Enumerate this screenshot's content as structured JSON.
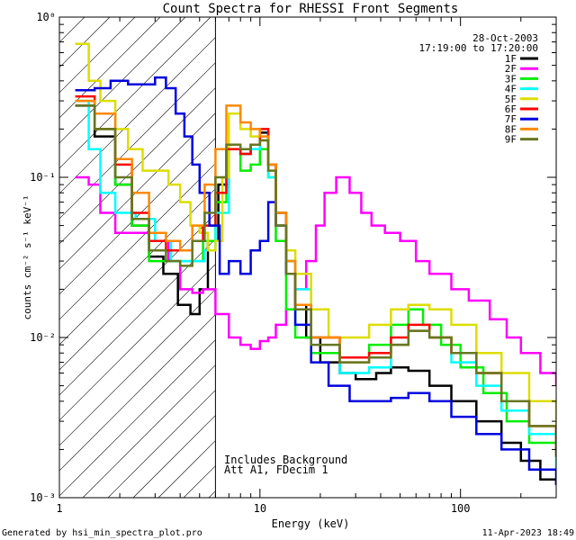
{
  "chart_data": {
    "type": "line",
    "title": "Count Spectra for RHESSI Front Segments",
    "xlabel": "Energy (keV)",
    "ylabel": "counts cm⁻² s⁻¹ keV⁻¹",
    "xscale": "log",
    "yscale": "log",
    "xlim": [
      1,
      300
    ],
    "ylim": [
      0.001,
      1
    ],
    "x_ticks": [
      {
        "value": 1,
        "label": "1"
      },
      {
        "value": 10,
        "label": "10"
      },
      {
        "value": 100,
        "label": "100"
      }
    ],
    "y_ticks": [
      {
        "value": 0.001,
        "label": "10⁻³"
      },
      {
        "value": 0.01,
        "label": "10⁻²"
      },
      {
        "value": 0.1,
        "label": "10⁻¹"
      },
      {
        "value": 1,
        "label": "10⁰"
      }
    ],
    "date": "28-Oct-2003",
    "time_range": "17:19:00 to 17:20:00",
    "shaded_region_max_kev": 6,
    "annotations": [
      "Includes Background",
      "Att A1, FDecim 1"
    ],
    "footer_left": "Generated by hsi_min_spectra_plot.pro",
    "footer_right": "11-Apr-2023 18:49",
    "series": [
      {
        "name": "1F",
        "color": "#000000",
        "points": [
          [
            1.2,
            0.28
          ],
          [
            1.5,
            0.18
          ],
          [
            1.9,
            0.09
          ],
          [
            2.3,
            0.05
          ],
          [
            2.8,
            0.032
          ],
          [
            3.3,
            0.025
          ],
          [
            3.9,
            0.016
          ],
          [
            4.5,
            0.014
          ],
          [
            5.0,
            0.02
          ],
          [
            5.5,
            0.04
          ],
          [
            6.2,
            0.09
          ],
          [
            7.0,
            0.15
          ],
          [
            8.0,
            0.14
          ],
          [
            9.0,
            0.16
          ],
          [
            10.0,
            0.19
          ],
          [
            11.0,
            0.12
          ],
          [
            12.0,
            0.06
          ],
          [
            13.5,
            0.03
          ],
          [
            15.0,
            0.016
          ],
          [
            17.0,
            0.01
          ],
          [
            20.0,
            0.007
          ],
          [
            25.0,
            0.006
          ],
          [
            30.0,
            0.0055
          ],
          [
            38.0,
            0.006
          ],
          [
            45.0,
            0.0065
          ],
          [
            55.0,
            0.0062
          ],
          [
            70.0,
            0.005
          ],
          [
            90.0,
            0.004
          ],
          [
            120.0,
            0.003
          ],
          [
            160.0,
            0.0022
          ],
          [
            200.0,
            0.0017
          ],
          [
            250.0,
            0.0013
          ],
          [
            300.0,
            0.0012
          ]
        ]
      },
      {
        "name": "2F",
        "color": "#ff00ff",
        "points": [
          [
            1.2,
            0.1
          ],
          [
            1.4,
            0.09
          ],
          [
            1.6,
            0.06
          ],
          [
            1.9,
            0.045
          ],
          [
            2.3,
            0.045
          ],
          [
            2.8,
            0.04
          ],
          [
            3.5,
            0.03
          ],
          [
            4.0,
            0.02
          ],
          [
            4.6,
            0.019
          ],
          [
            5.2,
            0.02
          ],
          [
            6.0,
            0.014
          ],
          [
            7.0,
            0.01
          ],
          [
            8.0,
            0.009
          ],
          [
            9.0,
            0.0085
          ],
          [
            10.0,
            0.0095
          ],
          [
            11.0,
            0.01
          ],
          [
            12.0,
            0.012
          ],
          [
            13.5,
            0.015
          ],
          [
            15.0,
            0.02
          ],
          [
            17.0,
            0.03
          ],
          [
            19.0,
            0.05
          ],
          [
            21.0,
            0.08
          ],
          [
            24.0,
            0.1
          ],
          [
            28.0,
            0.08
          ],
          [
            32.0,
            0.06
          ],
          [
            36.0,
            0.05
          ],
          [
            42.0,
            0.045
          ],
          [
            50.0,
            0.04
          ],
          [
            60.0,
            0.03
          ],
          [
            70.0,
            0.025
          ],
          [
            90.0,
            0.02
          ],
          [
            110.0,
            0.017
          ],
          [
            140.0,
            0.013
          ],
          [
            170.0,
            0.01
          ],
          [
            200.0,
            0.008
          ],
          [
            250.0,
            0.006
          ],
          [
            300.0,
            0.005
          ]
        ]
      },
      {
        "name": "3F",
        "color": "#00ee00",
        "points": [
          [
            1.2,
            0.3
          ],
          [
            1.5,
            0.2
          ],
          [
            1.9,
            0.09
          ],
          [
            2.3,
            0.05
          ],
          [
            2.8,
            0.03
          ],
          [
            3.5,
            0.03
          ],
          [
            4.5,
            0.03
          ],
          [
            5.2,
            0.04
          ],
          [
            6.0,
            0.07
          ],
          [
            6.8,
            0.15
          ],
          [
            8.0,
            0.11
          ],
          [
            9.0,
            0.12
          ],
          [
            10.0,
            0.15
          ],
          [
            11.0,
            0.1
          ],
          [
            12.0,
            0.04
          ],
          [
            13.5,
            0.015
          ],
          [
            15.0,
            0.01
          ],
          [
            18.0,
            0.008
          ],
          [
            25.0,
            0.0075
          ],
          [
            35.0,
            0.009
          ],
          [
            45.0,
            0.012
          ],
          [
            55.0,
            0.015
          ],
          [
            65.0,
            0.012
          ],
          [
            80.0,
            0.009
          ],
          [
            100.0,
            0.0065
          ],
          [
            130.0,
            0.0045
          ],
          [
            170.0,
            0.003
          ],
          [
            220.0,
            0.0022
          ],
          [
            300.0,
            0.0018
          ]
        ]
      },
      {
        "name": "4F",
        "color": "#00ffff",
        "points": [
          [
            1.2,
            0.3
          ],
          [
            1.4,
            0.15
          ],
          [
            1.6,
            0.08
          ],
          [
            1.9,
            0.06
          ],
          [
            2.4,
            0.055
          ],
          [
            3.0,
            0.04
          ],
          [
            3.6,
            0.03
          ],
          [
            4.5,
            0.03
          ],
          [
            5.3,
            0.035
          ],
          [
            6.0,
            0.06
          ],
          [
            7.0,
            0.15
          ],
          [
            8.0,
            0.14
          ],
          [
            9.0,
            0.15
          ],
          [
            10.0,
            0.18
          ],
          [
            11.0,
            0.1
          ],
          [
            12.0,
            0.05
          ],
          [
            13.5,
            0.03
          ],
          [
            15.0,
            0.02
          ],
          [
            18.0,
            0.01
          ],
          [
            25.0,
            0.006
          ],
          [
            35.0,
            0.0065
          ],
          [
            45.0,
            0.009
          ],
          [
            55.0,
            0.011
          ],
          [
            70.0,
            0.01
          ],
          [
            90.0,
            0.007
          ],
          [
            120.0,
            0.005
          ],
          [
            160.0,
            0.0035
          ],
          [
            220.0,
            0.0025
          ],
          [
            300.0,
            0.0015
          ]
        ]
      },
      {
        "name": "5F",
        "color": "#dddd00",
        "points": [
          [
            1.2,
            0.68
          ],
          [
            1.4,
            0.4
          ],
          [
            1.6,
            0.3
          ],
          [
            1.9,
            0.2
          ],
          [
            2.2,
            0.15
          ],
          [
            2.6,
            0.11
          ],
          [
            3.0,
            0.11
          ],
          [
            3.5,
            0.09
          ],
          [
            4.0,
            0.07
          ],
          [
            4.5,
            0.05
          ],
          [
            5.0,
            0.045
          ],
          [
            5.5,
            0.035
          ],
          [
            6.0,
            0.04
          ],
          [
            6.5,
            0.1
          ],
          [
            7.0,
            0.25
          ],
          [
            8.0,
            0.2
          ],
          [
            9.0,
            0.18
          ],
          [
            10.0,
            0.17
          ],
          [
            11.0,
            0.12
          ],
          [
            12.0,
            0.05
          ],
          [
            13.5,
            0.035
          ],
          [
            15.0,
            0.025
          ],
          [
            18.0,
            0.015
          ],
          [
            22.0,
            0.01
          ],
          [
            28.0,
            0.01
          ],
          [
            35.0,
            0.012
          ],
          [
            45.0,
            0.015
          ],
          [
            55.0,
            0.016
          ],
          [
            70.0,
            0.015
          ],
          [
            90.0,
            0.012
          ],
          [
            120.0,
            0.008
          ],
          [
            160.0,
            0.006
          ],
          [
            220.0,
            0.004
          ],
          [
            300.0,
            0.0025
          ]
        ]
      },
      {
        "name": "6F",
        "color": "#ff0000",
        "points": [
          [
            1.2,
            0.32
          ],
          [
            1.5,
            0.2
          ],
          [
            1.9,
            0.12
          ],
          [
            2.3,
            0.06
          ],
          [
            2.8,
            0.04
          ],
          [
            3.4,
            0.035
          ],
          [
            4.0,
            0.035
          ],
          [
            4.6,
            0.04
          ],
          [
            5.2,
            0.05
          ],
          [
            6.0,
            0.08
          ],
          [
            6.8,
            0.15
          ],
          [
            8.0,
            0.14
          ],
          [
            9.0,
            0.16
          ],
          [
            10.0,
            0.2
          ],
          [
            11.0,
            0.12
          ],
          [
            12.0,
            0.05
          ],
          [
            13.5,
            0.025
          ],
          [
            15.0,
            0.016
          ],
          [
            18.0,
            0.01
          ],
          [
            25.0,
            0.0075
          ],
          [
            35.0,
            0.008
          ],
          [
            45.0,
            0.01
          ],
          [
            55.0,
            0.012
          ],
          [
            70.0,
            0.01
          ],
          [
            90.0,
            0.008
          ],
          [
            120.0,
            0.006
          ],
          [
            160.0,
            0.004
          ],
          [
            220.0,
            0.0028
          ],
          [
            300.0,
            0.002
          ]
        ]
      },
      {
        "name": "7F",
        "color": "#0000dd",
        "points": [
          [
            1.2,
            0.35
          ],
          [
            1.5,
            0.36
          ],
          [
            1.8,
            0.4
          ],
          [
            2.2,
            0.38
          ],
          [
            2.6,
            0.38
          ],
          [
            3.0,
            0.42
          ],
          [
            3.4,
            0.36
          ],
          [
            3.8,
            0.25
          ],
          [
            4.2,
            0.18
          ],
          [
            4.6,
            0.12
          ],
          [
            5.0,
            0.08
          ],
          [
            5.6,
            0.05
          ],
          [
            6.3,
            0.025
          ],
          [
            7.0,
            0.03
          ],
          [
            8.0,
            0.025
          ],
          [
            9.0,
            0.035
          ],
          [
            10.0,
            0.04
          ],
          [
            11.0,
            0.07
          ],
          [
            12.0,
            0.05
          ],
          [
            13.5,
            0.025
          ],
          [
            15.0,
            0.012
          ],
          [
            18.0,
            0.007
          ],
          [
            22.0,
            0.005
          ],
          [
            28.0,
            0.004
          ],
          [
            35.0,
            0.004
          ],
          [
            45.0,
            0.0042
          ],
          [
            55.0,
            0.0045
          ],
          [
            70.0,
            0.004
          ],
          [
            90.0,
            0.0032
          ],
          [
            120.0,
            0.0025
          ],
          [
            160.0,
            0.002
          ],
          [
            220.0,
            0.0015
          ],
          [
            300.0,
            0.0012
          ]
        ]
      },
      {
        "name": "8F",
        "color": "#ff8800",
        "points": [
          [
            1.2,
            0.3
          ],
          [
            1.5,
            0.25
          ],
          [
            1.9,
            0.13
          ],
          [
            2.3,
            0.08
          ],
          [
            2.8,
            0.045
          ],
          [
            3.4,
            0.04
          ],
          [
            4.0,
            0.035
          ],
          [
            4.6,
            0.05
          ],
          [
            5.3,
            0.09
          ],
          [
            6.0,
            0.15
          ],
          [
            6.8,
            0.28
          ],
          [
            8.0,
            0.22
          ],
          [
            9.0,
            0.2
          ],
          [
            10.0,
            0.18
          ],
          [
            11.0,
            0.12
          ],
          [
            12.0,
            0.06
          ],
          [
            13.5,
            0.03
          ],
          [
            15.0,
            0.016
          ],
          [
            18.0,
            0.01
          ],
          [
            25.0,
            0.007
          ],
          [
            35.0,
            0.0075
          ],
          [
            45.0,
            0.009
          ],
          [
            55.0,
            0.011
          ],
          [
            70.0,
            0.01
          ],
          [
            90.0,
            0.008
          ],
          [
            120.0,
            0.006
          ],
          [
            160.0,
            0.004
          ],
          [
            220.0,
            0.0028
          ],
          [
            300.0,
            0.0018
          ]
        ]
      },
      {
        "name": "9F",
        "color": "#667722",
        "points": [
          [
            1.2,
            0.28
          ],
          [
            1.5,
            0.2
          ],
          [
            1.9,
            0.1
          ],
          [
            2.3,
            0.055
          ],
          [
            2.8,
            0.035
          ],
          [
            3.4,
            0.03
          ],
          [
            4.0,
            0.028
          ],
          [
            4.6,
            0.04
          ],
          [
            5.3,
            0.06
          ],
          [
            6.0,
            0.1
          ],
          [
            6.8,
            0.16
          ],
          [
            8.0,
            0.15
          ],
          [
            9.0,
            0.16
          ],
          [
            10.0,
            0.17
          ],
          [
            11.0,
            0.11
          ],
          [
            12.0,
            0.05
          ],
          [
            13.5,
            0.025
          ],
          [
            15.0,
            0.015
          ],
          [
            18.0,
            0.009
          ],
          [
            25.0,
            0.007
          ],
          [
            35.0,
            0.0075
          ],
          [
            45.0,
            0.009
          ],
          [
            55.0,
            0.011
          ],
          [
            70.0,
            0.01
          ],
          [
            90.0,
            0.008
          ],
          [
            120.0,
            0.006
          ],
          [
            160.0,
            0.004
          ],
          [
            220.0,
            0.0028
          ],
          [
            300.0,
            0.0018
          ]
        ]
      }
    ]
  }
}
